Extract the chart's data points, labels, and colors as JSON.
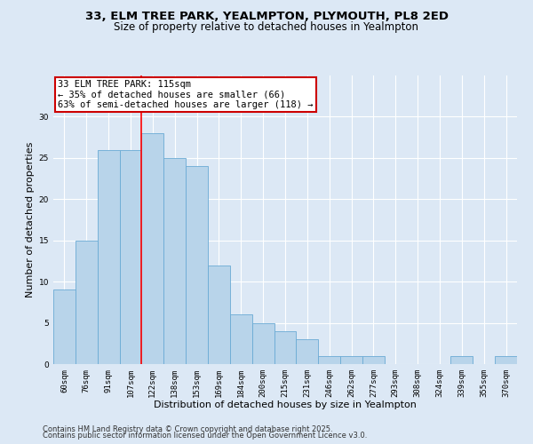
{
  "title_line1": "33, ELM TREE PARK, YEALMPTON, PLYMOUTH, PL8 2ED",
  "title_line2": "Size of property relative to detached houses in Yealmpton",
  "xlabel": "Distribution of detached houses by size in Yealmpton",
  "ylabel": "Number of detached properties",
  "bins": [
    "60sqm",
    "76sqm",
    "91sqm",
    "107sqm",
    "122sqm",
    "138sqm",
    "153sqm",
    "169sqm",
    "184sqm",
    "200sqm",
    "215sqm",
    "231sqm",
    "246sqm",
    "262sqm",
    "277sqm",
    "293sqm",
    "308sqm",
    "324sqm",
    "339sqm",
    "355sqm",
    "370sqm"
  ],
  "values": [
    9,
    15,
    26,
    26,
    28,
    25,
    24,
    12,
    6,
    5,
    4,
    3,
    1,
    1,
    1,
    0,
    0,
    0,
    1,
    0,
    1
  ],
  "bar_color": "#b8d4ea",
  "bar_edge_color": "#6aaad4",
  "red_line_x": 3.5,
  "annotation_text": "33 ELM TREE PARK: 115sqm\n← 35% of detached houses are smaller (66)\n63% of semi-detached houses are larger (118) →",
  "annotation_box_color": "#ffffff",
  "annotation_box_edge": "#cc0000",
  "footer_line1": "Contains HM Land Registry data © Crown copyright and database right 2025.",
  "footer_line2": "Contains public sector information licensed under the Open Government Licence v3.0.",
  "bg_color": "#dce8f5",
  "plot_bg_color": "#dce8f5",
  "ylim": [
    0,
    35
  ],
  "yticks": [
    0,
    5,
    10,
    15,
    20,
    25,
    30
  ],
  "grid_color": "#ffffff",
  "title_fontsize": 9.5,
  "subtitle_fontsize": 8.5,
  "axis_label_fontsize": 8,
  "tick_fontsize": 6.5,
  "annotation_fontsize": 7.5,
  "footer_fontsize": 6.0
}
